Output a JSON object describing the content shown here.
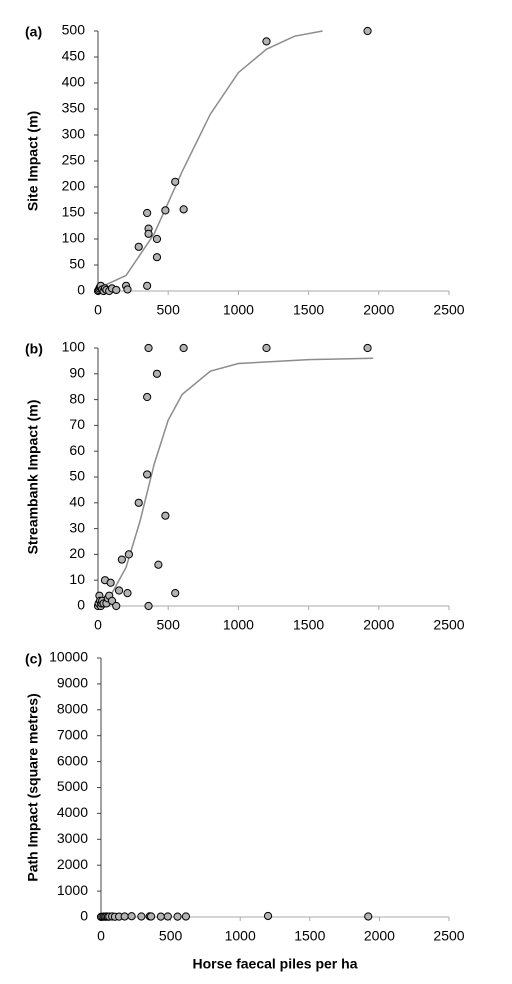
{
  "chart_data": [
    {
      "type": "scatter",
      "panel_label": "(a)",
      "ylabel": "Site Impact (m)",
      "x": [
        0,
        5,
        10,
        15,
        20,
        30,
        40,
        50,
        60,
        80,
        100,
        130,
        200,
        210,
        290,
        350,
        360,
        360,
        350,
        420,
        420,
        480,
        550,
        610,
        1200,
        1920
      ],
      "values": [
        0,
        2,
        5,
        8,
        10,
        3,
        0,
        5,
        2,
        0,
        5,
        2,
        10,
        3,
        85,
        150,
        120,
        110,
        10,
        100,
        65,
        155,
        210,
        157,
        480,
        500
      ],
      "color": "#b3b3b3",
      "curve": {
        "x": [
          0,
          200,
          400,
          600,
          800,
          1000,
          1200,
          1400,
          1600
        ],
        "values": [
          5,
          30,
          110,
          230,
          340,
          420,
          465,
          490,
          500
        ],
        "color": "#8c8c8c"
      },
      "xlim": [
        0,
        2500
      ],
      "xticks": [
        0,
        500,
        1000,
        1500,
        2000,
        2500
      ],
      "ylim": [
        0,
        500
      ],
      "yticks": [
        0,
        50,
        100,
        150,
        200,
        250,
        300,
        350,
        400,
        450,
        500
      ]
    },
    {
      "type": "scatter",
      "panel_label": "(b)",
      "ylabel": "Streambank Impact (m)",
      "x": [
        0,
        5,
        10,
        15,
        20,
        25,
        30,
        40,
        50,
        60,
        70,
        80,
        90,
        100,
        130,
        150,
        170,
        210,
        220,
        290,
        350,
        350,
        360,
        360,
        420,
        430,
        480,
        550,
        610,
        1200,
        1920
      ],
      "values": [
        0,
        1,
        4,
        2,
        0,
        1,
        2,
        1,
        10,
        1,
        3,
        4,
        9,
        2,
        0,
        6,
        18,
        5,
        20,
        40,
        51,
        81,
        100,
        0,
        90,
        16,
        35,
        5,
        100,
        100,
        100
      ],
      "color": "#b3b3b3",
      "curve": {
        "x": [
          0,
          100,
          200,
          300,
          400,
          500,
          600,
          800,
          1000,
          1500,
          1960
        ],
        "values": [
          0.5,
          5,
          15,
          33,
          55,
          72,
          82,
          91,
          94,
          95.5,
          96
        ],
        "color": "#8c8c8c"
      },
      "xlim": [
        0,
        2500
      ],
      "xticks": [
        0,
        500,
        1000,
        1500,
        2000,
        2500
      ],
      "ylim": [
        0,
        100
      ],
      "yticks": [
        0,
        10,
        20,
        30,
        40,
        50,
        60,
        70,
        80,
        90,
        100
      ]
    },
    {
      "type": "scatter",
      "panel_label": "(c)",
      "ylabel": "Path Impact (square metres)",
      "xlabel": "Horse faecal piles per ha",
      "x": [
        0,
        10,
        20,
        30,
        40,
        50,
        60,
        80,
        100,
        130,
        170,
        220,
        290,
        350,
        360,
        430,
        480,
        550,
        610,
        1200,
        1920
      ],
      "values": [
        5,
        10,
        15,
        10,
        20,
        10,
        15,
        20,
        10,
        15,
        20,
        30,
        20,
        25,
        20,
        15,
        20,
        15,
        20,
        40,
        20
      ],
      "color": "#b3b3b3",
      "xlim": [
        0,
        2500
      ],
      "xticks": [
        0,
        500,
        1000,
        1500,
        2000,
        2500
      ],
      "ylim": [
        0,
        10000
      ],
      "yticks": [
        0,
        1000,
        2000,
        3000,
        4000,
        5000,
        6000,
        7000,
        8000,
        9000,
        10000
      ]
    }
  ]
}
